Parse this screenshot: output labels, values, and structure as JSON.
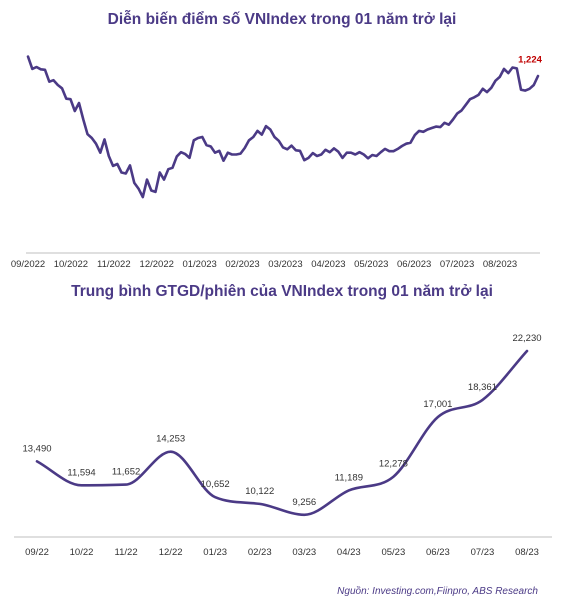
{
  "source": "Nguồn: Investing.com,Fiinpro, ABS Research",
  "chart_data": [
    {
      "type": "line",
      "title": "Diễn biến điểm số VNIndex trong 01 năm trở lại",
      "x_labels": [
        "09/2022",
        "10/2022",
        "11/2022",
        "12/2022",
        "01/2023",
        "02/2023",
        "03/2023",
        "04/2023",
        "05/2023",
        "06/2023",
        "07/2023",
        "08/2023"
      ],
      "last_value_label": "1,224",
      "line_color": "#4b3a86",
      "label_color": "#c00000",
      "ylim": [
        850,
        1300
      ],
      "series": [
        {
          "values": [
            1265,
            1239,
            1243,
            1238,
            1237,
            1212,
            1215,
            1205,
            1198,
            1176,
            1175,
            1150,
            1167,
            1132,
            1101,
            1093,
            1081,
            1062,
            1090,
            1055,
            1034,
            1038,
            1020,
            1018,
            1035,
            998,
            986,
            968,
            1005,
            982,
            979,
            1020,
            1005,
            1027,
            1030,
            1054,
            1063,
            1059,
            1051,
            1088,
            1093,
            1095,
            1078,
            1075,
            1062,
            1066,
            1045,
            1062,
            1058,
            1058,
            1060,
            1072,
            1088,
            1095,
            1108,
            1100,
            1118,
            1111,
            1095,
            1087,
            1073,
            1069,
            1077,
            1067,
            1066,
            1046,
            1051,
            1061,
            1055,
            1058,
            1068,
            1063,
            1071,
            1064,
            1051,
            1062,
            1062,
            1058,
            1063,
            1058,
            1050,
            1057,
            1055,
            1063,
            1070,
            1065,
            1065,
            1070,
            1076,
            1081,
            1083,
            1099,
            1108,
            1106,
            1111,
            1114,
            1117,
            1116,
            1125,
            1121,
            1132,
            1145,
            1151,
            1163,
            1175,
            1179,
            1184,
            1197,
            1190,
            1199,
            1214,
            1222,
            1239,
            1230,
            1242,
            1240,
            1195,
            1193,
            1197,
            1205,
            1224
          ]
        }
      ]
    },
    {
      "type": "line",
      "title": "Trung bình GTGD/phiên của VNIndex trong 01 năm trở lại",
      "categories": [
        "09/22",
        "10/22",
        "11/22",
        "12/22",
        "01/23",
        "02/23",
        "03/23",
        "04/23",
        "05/23",
        "06/23",
        "07/23",
        "08/23"
      ],
      "data_labels": [
        "13,490",
        "11,594",
        "11,652",
        "14,253",
        "10,652",
        "10,122",
        "9,256",
        "11,189",
        "12,278",
        "17,001",
        "18,361",
        "22,230"
      ],
      "line_color": "#4b3a86",
      "ylim": [
        7500,
        23500
      ],
      "series": [
        {
          "values": [
            13490,
            11594,
            11652,
            14253,
            10652,
            10122,
            9256,
            11189,
            12278,
            17001,
            18361,
            22230
          ]
        }
      ]
    }
  ]
}
